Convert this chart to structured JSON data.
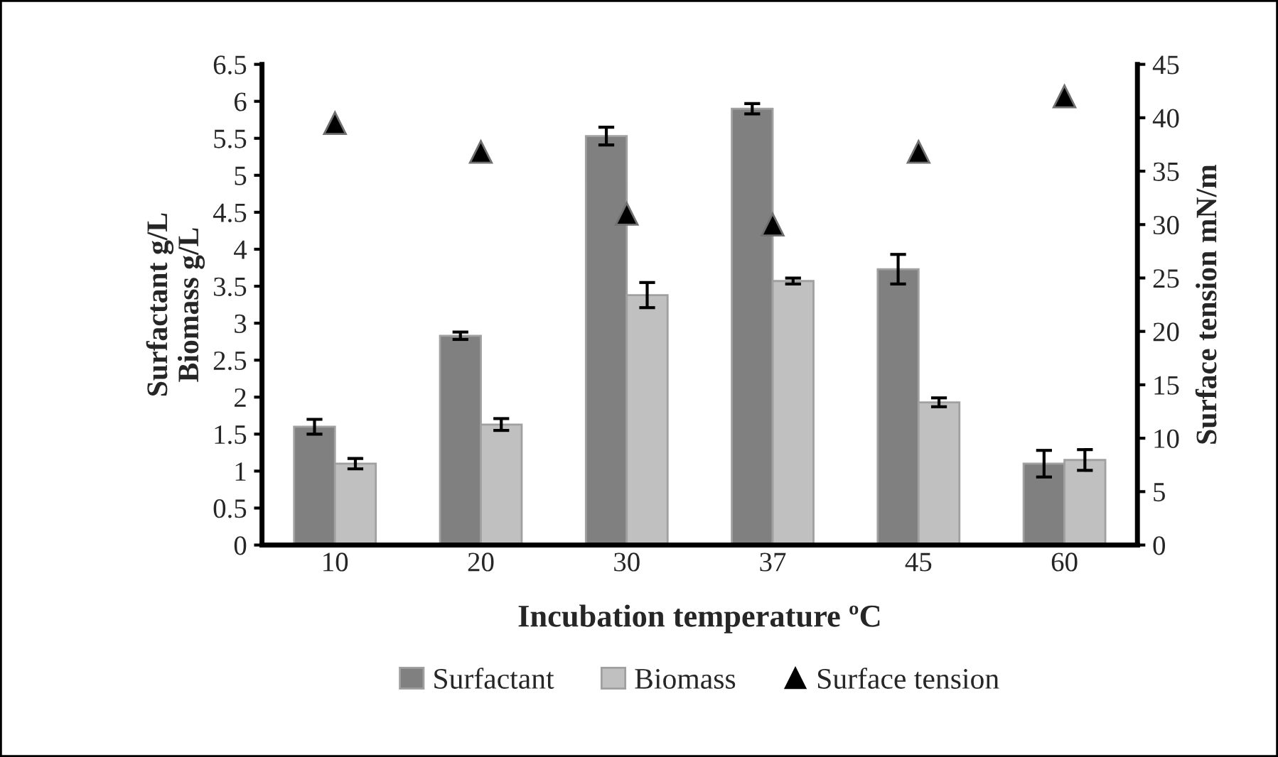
{
  "chart_data": {
    "type": "bar",
    "xlabel": "Incubation temperature ºC",
    "ylabel": "Surfactant g/L\nBiomass g/L",
    "y2label": "Surface tension mN/m",
    "categories": [
      "10",
      "20",
      "30",
      "37",
      "45",
      "60"
    ],
    "series": [
      {
        "name": "Surfactant",
        "color": "#808080",
        "values": [
          1.6,
          2.83,
          5.53,
          5.9,
          3.73,
          1.1
        ],
        "errors": [
          0.1,
          0.05,
          0.12,
          0.07,
          0.2,
          0.18
        ]
      },
      {
        "name": "Biomass",
        "color": "#c0c0c0",
        "values": [
          1.1,
          1.63,
          3.38,
          3.57,
          1.93,
          1.15
        ],
        "errors": [
          0.07,
          0.08,
          0.17,
          0.04,
          0.06,
          0.14
        ]
      },
      {
        "name": "Surface tension",
        "type": "scatter",
        "axis": "y2",
        "marker": "triangle",
        "color": "#000000",
        "values": [
          39.5,
          36.8,
          31,
          30,
          36.8,
          42
        ]
      }
    ],
    "ylim": [
      0,
      6.5
    ],
    "yticks": [
      0,
      0.5,
      1,
      1.5,
      2,
      2.5,
      3,
      3.5,
      4,
      4.5,
      5,
      5.5,
      6,
      6.5
    ],
    "y2lim": [
      0,
      45
    ],
    "y2ticks": [
      0,
      5,
      10,
      15,
      20,
      25,
      30,
      35,
      40,
      45
    ],
    "legend": "bottom",
    "grid": false
  }
}
